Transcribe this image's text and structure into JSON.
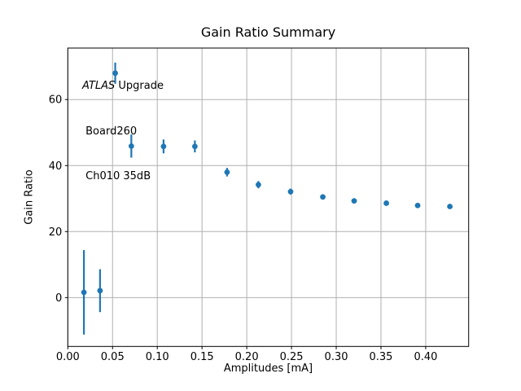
{
  "figure": {
    "background": "#ffffff"
  },
  "chart_data": {
    "type": "scatter",
    "title": "Gain Ratio Summary",
    "xlabel": "Amplitudes [mA]",
    "ylabel": "Gain Ratio",
    "xlim": [
      0.0,
      0.448
    ],
    "ylim": [
      -14.8,
      75.6
    ],
    "x_ticks": [
      0.0,
      0.05,
      0.1,
      0.15,
      0.2,
      0.25,
      0.3,
      0.35,
      0.4
    ],
    "x_tick_labels": [
      "0.00",
      "0.05",
      "0.10",
      "0.15",
      "0.20",
      "0.25",
      "0.30",
      "0.35",
      "0.40"
    ],
    "y_ticks": [
      0,
      20,
      40,
      60
    ],
    "y_tick_labels": [
      "0",
      "20",
      "40",
      "60"
    ],
    "grid": true,
    "legend": "none",
    "marker_color": "#1f77b4",
    "grid_color": "#b0b0b0",
    "frame_color": "#000000",
    "series": [
      {
        "name": "gain-ratio-vs-amplitude",
        "points": [
          {
            "x": 0.018,
            "y": 1.6,
            "yerr": 12.8
          },
          {
            "x": 0.036,
            "y": 2.1,
            "yerr": 6.5
          },
          {
            "x": 0.053,
            "y": 68.0,
            "yerr": 3.2
          },
          {
            "x": 0.071,
            "y": 45.9,
            "yerr": 3.5
          },
          {
            "x": 0.107,
            "y": 45.8,
            "yerr": 2.1
          },
          {
            "x": 0.142,
            "y": 45.8,
            "yerr": 1.8
          },
          {
            "x": 0.178,
            "y": 38.0,
            "yerr": 1.3
          },
          {
            "x": 0.213,
            "y": 34.2,
            "yerr": 1.1
          },
          {
            "x": 0.249,
            "y": 32.1,
            "yerr": 0.9
          },
          {
            "x": 0.285,
            "y": 30.5,
            "yerr": 0.8
          },
          {
            "x": 0.32,
            "y": 29.3,
            "yerr": 0.7
          },
          {
            "x": 0.356,
            "y": 28.6,
            "yerr": 0.7
          },
          {
            "x": 0.391,
            "y": 27.9,
            "yerr": 0.6
          },
          {
            "x": 0.427,
            "y": 27.6,
            "yerr": 0.6
          }
        ]
      }
    ],
    "annotation": {
      "line1_italic": "ATLAS",
      "line1_rest": " Upgrade",
      "line2": " Board260",
      "line3": " Ch010 35dB"
    }
  }
}
